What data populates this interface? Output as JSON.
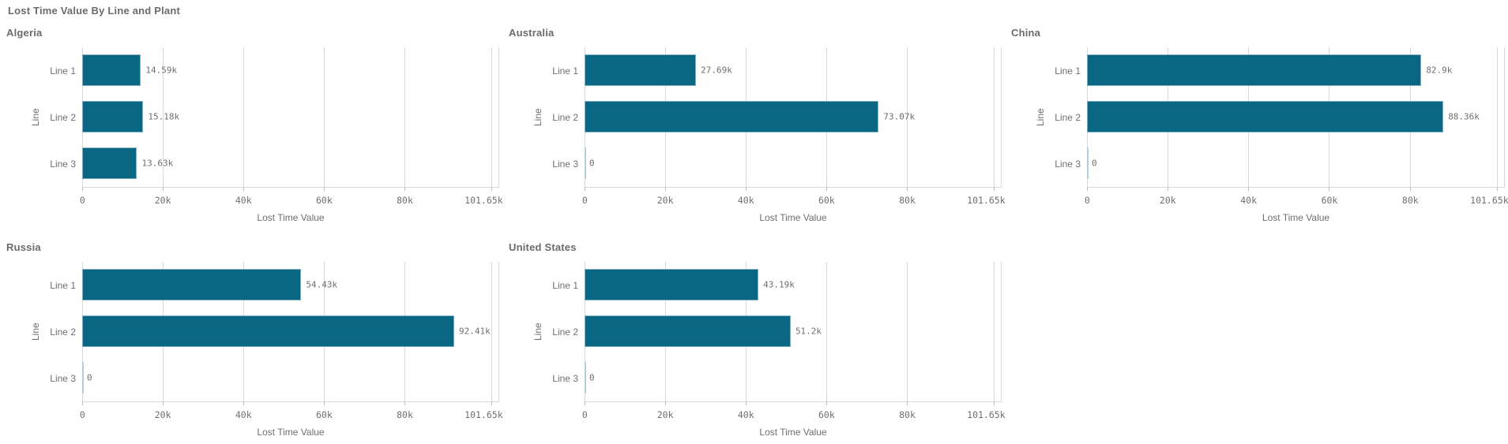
{
  "page_title": "Lost Time Value By Line and Plant",
  "colors": {
    "bar": "#0a6783",
    "zero_bar": "#b5cedb",
    "grid": "#d9d9d9",
    "muted_text": "#6f6f6f",
    "title_text": "#6b6b6b"
  },
  "axis": {
    "xlabel": "Lost Time Value",
    "ylabel": "Line",
    "axis_max": 103400,
    "ticks": [
      {
        "label": "0",
        "value": 0
      },
      {
        "label": "20k",
        "value": 20000
      },
      {
        "label": "40k",
        "value": 40000
      },
      {
        "label": "60k",
        "value": 60000
      },
      {
        "label": "80k",
        "value": 80000
      },
      {
        "label": "101.65k",
        "value": 101650
      }
    ]
  },
  "chart_data": [
    {
      "type": "bar",
      "orientation": "horizontal",
      "title": "Algeria",
      "categories": [
        "Line 1",
        "Line 2",
        "Line 3"
      ],
      "values": [
        14590,
        15180,
        13630
      ],
      "value_labels": [
        "14.59k",
        "15.18k",
        "13.63k"
      ],
      "xlabel": "Lost Time Value",
      "ylabel": "Line",
      "xlim": [
        0,
        101650
      ],
      "grid": "vertical-only",
      "legend": "none"
    },
    {
      "type": "bar",
      "orientation": "horizontal",
      "title": "Australia",
      "categories": [
        "Line 1",
        "Line 2",
        "Line 3"
      ],
      "values": [
        27690,
        73070,
        0
      ],
      "value_labels": [
        "27.69k",
        "73.07k",
        "0"
      ],
      "xlabel": "Lost Time Value",
      "ylabel": "Line",
      "xlim": [
        0,
        101650
      ],
      "grid": "vertical-only",
      "legend": "none"
    },
    {
      "type": "bar",
      "orientation": "horizontal",
      "title": "China",
      "categories": [
        "Line 1",
        "Line 2",
        "Line 3"
      ],
      "values": [
        82900,
        88360,
        0
      ],
      "value_labels": [
        "82.9k",
        "88.36k",
        "0"
      ],
      "xlabel": "Lost Time Value",
      "ylabel": "Line",
      "xlim": [
        0,
        101650
      ],
      "grid": "vertical-only",
      "legend": "none"
    },
    {
      "type": "bar",
      "orientation": "horizontal",
      "title": "Russia",
      "categories": [
        "Line 1",
        "Line 2",
        "Line 3"
      ],
      "values": [
        54430,
        92410,
        0
      ],
      "value_labels": [
        "54.43k",
        "92.41k",
        "0"
      ],
      "xlabel": "Lost Time Value",
      "ylabel": "Line",
      "xlim": [
        0,
        101650
      ],
      "grid": "vertical-only",
      "legend": "none"
    },
    {
      "type": "bar",
      "orientation": "horizontal",
      "title": "United States",
      "categories": [
        "Line 1",
        "Line 2",
        "Line 3"
      ],
      "values": [
        43190,
        51200,
        0
      ],
      "value_labels": [
        "43.19k",
        "51.2k",
        "0"
      ],
      "xlabel": "Lost Time Value",
      "ylabel": "Line",
      "xlim": [
        0,
        101650
      ],
      "grid": "vertical-only",
      "legend": "none"
    }
  ]
}
